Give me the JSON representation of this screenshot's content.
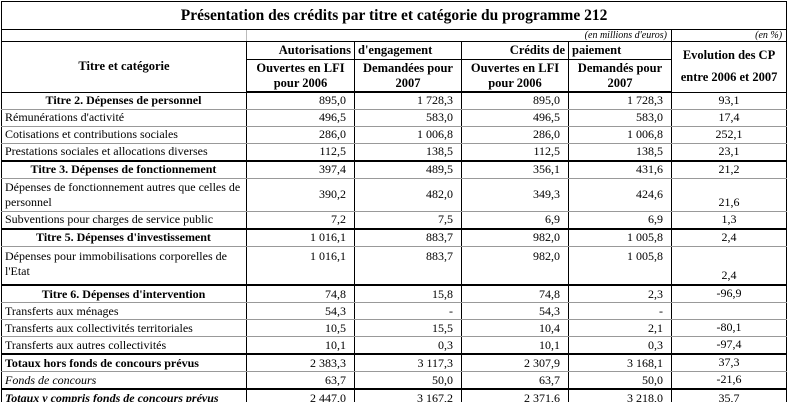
{
  "title": "Présentation des crédits par titre et catégorie du programme 212",
  "units": {
    "millions": "(en millions d'euros)",
    "percent": "(en %)"
  },
  "header": {
    "row_label": "Titre et catégorie",
    "ae_part1": "Autorisations",
    "ae_part2": "d'engagement",
    "cp_part1": "Crédits de",
    "cp_part2": "paiement",
    "evolution_line1": "Evolution des CP",
    "evolution_line2": "entre 2006 et 2007",
    "columns": [
      "Ouvertes en LFI pour 2006",
      "Demandées pour 2007",
      "Ouvertes en LFI pour 2006",
      "Demandés pour 2007"
    ]
  },
  "table": {
    "rows": [
      {
        "label": "Titre 2. Dépenses de personnel",
        "type": "title",
        "group_start": false,
        "values": [
          "895,0",
          "1 728,3",
          "895,0",
          "1 728,3",
          "93,1"
        ]
      },
      {
        "label": "Rémunérations d'activité",
        "type": "normal",
        "group_start": false,
        "values": [
          "496,5",
          "583,0",
          "496,5",
          "583,0",
          "17,4"
        ]
      },
      {
        "label": "Cotisations et contributions sociales",
        "type": "normal",
        "group_start": false,
        "values": [
          "286,0",
          "1 006,8",
          "286,0",
          "1 006,8",
          "252,1"
        ]
      },
      {
        "label": "Prestations sociales et allocations diverses",
        "type": "normal",
        "group_start": false,
        "values": [
          "112,5",
          "138,5",
          "112,5",
          "138,5",
          "23,1"
        ]
      },
      {
        "label": "Titre 3. Dépenses de fonctionnement",
        "type": "title",
        "group_start": true,
        "values": [
          "397,4",
          "489,5",
          "356,1",
          "431,6",
          "21,2"
        ]
      },
      {
        "label": "Dépenses de fonctionnement autres que celles de personnel",
        "type": "normal",
        "group_start": false,
        "values": [
          "390,2",
          "482,0",
          "349,3",
          "424,6",
          "21,6"
        ]
      },
      {
        "label": "Subventions pour charges de service public",
        "type": "normal",
        "group_start": false,
        "values": [
          "7,2",
          "7,5",
          "6,9",
          "6,9",
          "1,3"
        ]
      },
      {
        "label": "Titre 5. Dépenses d'investissement",
        "type": "title",
        "group_start": true,
        "values": [
          "1 016,1",
          "883,7",
          "982,0",
          "1 005,8",
          "2,4"
        ]
      },
      {
        "label": "Dépenses pour immobilisations corporelles de l'Etat",
        "type": "normal",
        "group_start": false,
        "values": [
          "1 016,1",
          "883,7",
          "982,0",
          "1 005,8",
          "2,4"
        ]
      },
      {
        "label": "Titre 6. Dépenses d'intervention",
        "type": "title",
        "group_start": true,
        "values": [
          "74,8",
          "15,8",
          "74,8",
          "2,3",
          "-96,9"
        ]
      },
      {
        "label": "Transferts aux ménages",
        "type": "normal",
        "group_start": false,
        "values": [
          "54,3",
          "-",
          "54,3",
          "-",
          ""
        ]
      },
      {
        "label": "Transferts aux collectivités territoriales",
        "type": "normal",
        "group_start": false,
        "values": [
          "10,5",
          "15,5",
          "10,4",
          "2,1",
          "-80,1"
        ]
      },
      {
        "label": "Transferts aux autres collectivités",
        "type": "normal",
        "group_start": false,
        "values": [
          "10,1",
          "0,3",
          "10,1",
          "0,3",
          "-97,4"
        ]
      },
      {
        "label": "Totaux hors fonds de concours prévus",
        "type": "total",
        "group_start": true,
        "values": [
          "2 383,3",
          "3 117,3",
          "2 307,9",
          "3 168,1",
          "37,3"
        ]
      },
      {
        "label": "Fonds de concours",
        "type": "italic",
        "group_start": false,
        "values": [
          "63,7",
          "50,0",
          "63,7",
          "50,0",
          "-21,6"
        ]
      },
      {
        "label": "Totaux y compris fonds de concours prévus",
        "type": "total-italic",
        "group_start": true,
        "values": [
          "2 447,0",
          "3 167,2",
          "2 371,6",
          "3 218,0",
          "35,7"
        ]
      }
    ]
  }
}
